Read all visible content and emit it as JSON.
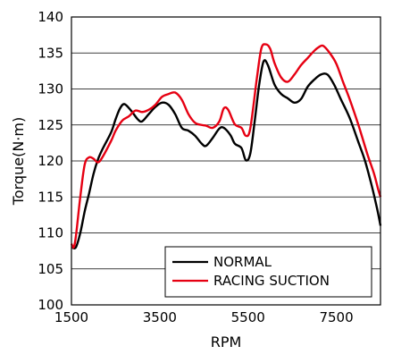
{
  "chart_data": {
    "type": "line",
    "xlabel": "RPM",
    "ylabel": "Torque(N·m)",
    "xlim": [
      1500,
      8500
    ],
    "ylim": [
      100,
      140
    ],
    "xticks": [
      1500,
      3500,
      5500,
      7500
    ],
    "yticks": [
      100,
      105,
      110,
      115,
      120,
      125,
      130,
      135,
      140
    ],
    "grid": "horizontal",
    "legend_position": "bottom-right",
    "series": [
      {
        "name": "NORMAL",
        "color": "#000000",
        "points": [
          [
            1500,
            108
          ],
          [
            1600,
            108
          ],
          [
            1700,
            110
          ],
          [
            1800,
            113
          ],
          [
            1900,
            115.5
          ],
          [
            2000,
            118.2
          ],
          [
            2100,
            120.2
          ],
          [
            2200,
            121.6
          ],
          [
            2400,
            124
          ],
          [
            2500,
            125.8
          ],
          [
            2600,
            127.3
          ],
          [
            2700,
            127.9
          ],
          [
            2850,
            127
          ],
          [
            3000,
            125.8
          ],
          [
            3100,
            125.5
          ],
          [
            3250,
            126.5
          ],
          [
            3400,
            127.5
          ],
          [
            3550,
            128.1
          ],
          [
            3700,
            127.8
          ],
          [
            3850,
            126.5
          ],
          [
            4000,
            124.6
          ],
          [
            4150,
            124.2
          ],
          [
            4300,
            123.5
          ],
          [
            4450,
            122.4
          ],
          [
            4550,
            122.1
          ],
          [
            4700,
            123.2
          ],
          [
            4850,
            124.5
          ],
          [
            4950,
            124.6
          ],
          [
            5100,
            123.6
          ],
          [
            5200,
            122.4
          ],
          [
            5350,
            121.8
          ],
          [
            5450,
            120.1
          ],
          [
            5550,
            121
          ],
          [
            5650,
            125.5
          ],
          [
            5750,
            130.5
          ],
          [
            5850,
            133.8
          ],
          [
            5950,
            133.3
          ],
          [
            6100,
            130.6
          ],
          [
            6250,
            129.3
          ],
          [
            6400,
            128.7
          ],
          [
            6550,
            128.1
          ],
          [
            6700,
            128.6
          ],
          [
            6850,
            130.3
          ],
          [
            7000,
            131.3
          ],
          [
            7150,
            132
          ],
          [
            7300,
            132
          ],
          [
            7450,
            130.6
          ],
          [
            7600,
            128.6
          ],
          [
            7800,
            126
          ],
          [
            8000,
            122.6
          ],
          [
            8150,
            120
          ],
          [
            8300,
            116.6
          ],
          [
            8400,
            114
          ],
          [
            8450,
            112.6
          ],
          [
            8500,
            111
          ]
        ]
      },
      {
        "name": "RACING SUCTION",
        "color": "#e60012",
        "points": [
          [
            1500,
            108.5
          ],
          [
            1550,
            108
          ],
          [
            1600,
            109.5
          ],
          [
            1700,
            115
          ],
          [
            1800,
            119.5
          ],
          [
            1900,
            120.5
          ],
          [
            2000,
            120.3
          ],
          [
            2100,
            119.8
          ],
          [
            2200,
            120.5
          ],
          [
            2400,
            122.8
          ],
          [
            2500,
            124.2
          ],
          [
            2650,
            125.6
          ],
          [
            2800,
            126.2
          ],
          [
            2950,
            127
          ],
          [
            3100,
            126.8
          ],
          [
            3250,
            127.1
          ],
          [
            3400,
            127.8
          ],
          [
            3550,
            128.9
          ],
          [
            3700,
            129.3
          ],
          [
            3850,
            129.5
          ],
          [
            4000,
            128.5
          ],
          [
            4150,
            126.5
          ],
          [
            4300,
            125.3
          ],
          [
            4450,
            125
          ],
          [
            4550,
            124.9
          ],
          [
            4700,
            124.6
          ],
          [
            4850,
            125.5
          ],
          [
            4950,
            127.3
          ],
          [
            5050,
            127.1
          ],
          [
            5200,
            125.1
          ],
          [
            5350,
            124.6
          ],
          [
            5450,
            123.5
          ],
          [
            5550,
            124.5
          ],
          [
            5700,
            131.5
          ],
          [
            5800,
            135.6
          ],
          [
            5900,
            136.2
          ],
          [
            6000,
            135.6
          ],
          [
            6100,
            133.6
          ],
          [
            6250,
            131.6
          ],
          [
            6400,
            131
          ],
          [
            6550,
            132
          ],
          [
            6700,
            133.3
          ],
          [
            6850,
            134.3
          ],
          [
            7000,
            135.3
          ],
          [
            7100,
            135.8
          ],
          [
            7200,
            136
          ],
          [
            7350,
            135
          ],
          [
            7500,
            133.5
          ],
          [
            7650,
            131
          ],
          [
            7800,
            128.6
          ],
          [
            8000,
            125
          ],
          [
            8200,
            121
          ],
          [
            8350,
            118.3
          ],
          [
            8450,
            116
          ],
          [
            8500,
            115
          ]
        ]
      }
    ]
  }
}
